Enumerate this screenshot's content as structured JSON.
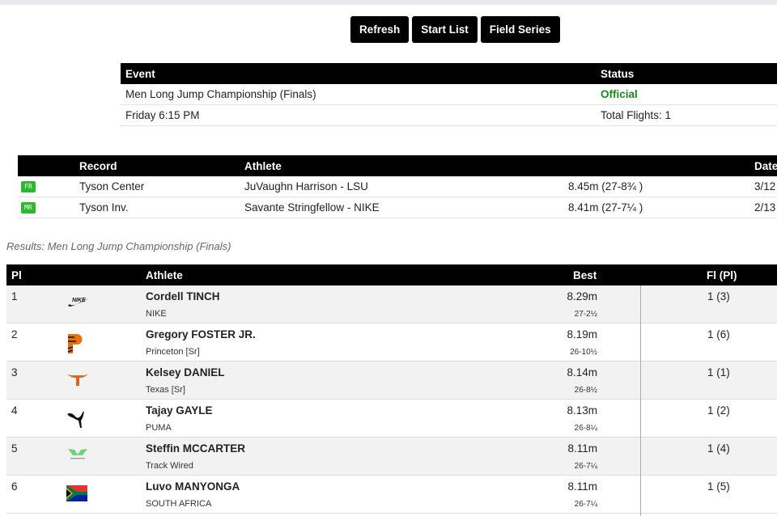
{
  "toolbar": {
    "refresh": "Refresh",
    "start_list": "Start List",
    "field_series": "Field Series"
  },
  "event": {
    "headers": {
      "event": "Event",
      "status": "Status"
    },
    "name": "Men Long Jump Championship (Finals)",
    "status": "Official",
    "status_color": "#1a8a1a",
    "time": "Friday 6:15 PM",
    "flights": "Total Flights: 1"
  },
  "records": {
    "headers": {
      "record": "Record",
      "athlete": "Athlete",
      "date": "Date"
    },
    "rows": [
      {
        "badge": "FR",
        "record": "Tyson Center",
        "athlete": "JuVaughn Harrison - LSU",
        "mark": "8.45m (27-8¾ )",
        "date": "3/12"
      },
      {
        "badge": "MR",
        "record": "Tyson Inv.",
        "athlete": "Savante Stringfellow - NIKE",
        "mark": "8.41m (27-7¼ )",
        "date": "2/13"
      }
    ]
  },
  "results": {
    "caption": "Results: Men Long Jump Championship (Finals)",
    "headers": {
      "pl": "Pl",
      "athlete": "Athlete",
      "best": "Best",
      "flight": "Fl (Pl)"
    },
    "rows": [
      {
        "pl": "1",
        "logo": "nike-logo",
        "name": "Cordell TINCH",
        "team": "NIKE",
        "best": "8.29m",
        "imperial": "27-2½",
        "flight": "1 (3)"
      },
      {
        "pl": "2",
        "logo": "princeton-logo",
        "name": "Gregory FOSTER JR.",
        "team": "Princeton [Sr]",
        "best": "8.19m",
        "imperial": "26-10½",
        "flight": "1 (6)"
      },
      {
        "pl": "3",
        "logo": "texas-longhorn-logo",
        "name": "Kelsey DANIEL",
        "team": "Texas [Sr]",
        "best": "8.14m",
        "imperial": "26-8½",
        "flight": "1 (1)"
      },
      {
        "pl": "4",
        "logo": "puma-logo",
        "name": "Tajay GAYLE",
        "team": "PUMA",
        "best": "8.13m",
        "imperial": "26-8¼",
        "flight": "1 (2)"
      },
      {
        "pl": "5",
        "logo": "track-wired-logo",
        "name": "Steffin MCCARTER",
        "team": "Track Wired",
        "best": "8.11m",
        "imperial": "26-7¼",
        "flight": "1 (4)"
      },
      {
        "pl": "6",
        "logo": "south-africa-flag",
        "name": "Luvo MANYONGA",
        "team": "SOUTH AFRICA",
        "best": "8.11m",
        "imperial": "26-7¼",
        "flight": "1 (5)"
      }
    ]
  }
}
